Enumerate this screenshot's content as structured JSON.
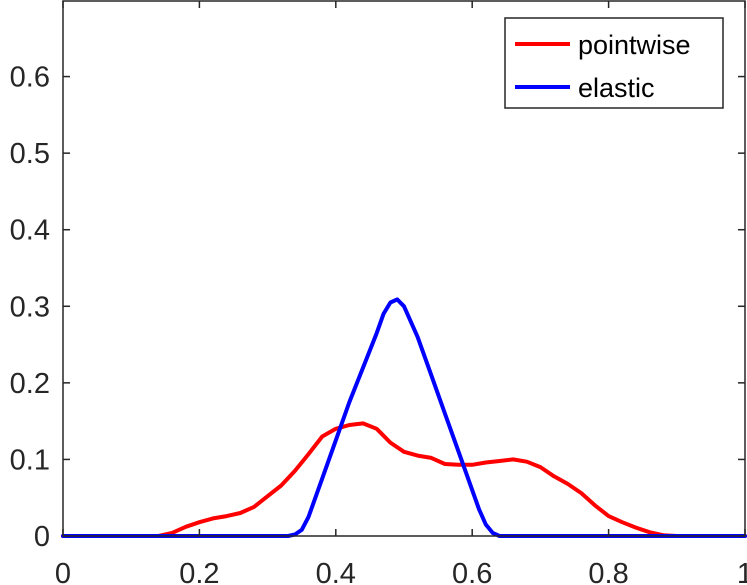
{
  "chart_data": {
    "type": "line",
    "xlim": [
      0,
      1
    ],
    "ylim": [
      0,
      0.7
    ],
    "xticks": [
      0,
      0.2,
      0.4,
      0.6,
      0.8,
      1
    ],
    "xtick_labels": [
      "0",
      "0.2",
      "0.4",
      "0.6",
      "0.8",
      "1"
    ],
    "yticks": [
      0,
      0.1,
      0.2,
      0.3,
      0.4,
      0.5,
      0.6
    ],
    "ytick_labels": [
      "0",
      "0.1",
      "0.2",
      "0.3",
      "0.4",
      "0.5",
      "0.6"
    ],
    "grid": false,
    "legend_position": "top-right",
    "series": [
      {
        "name": "pointwise",
        "color": "#ff0000",
        "x": [
          0,
          0.14,
          0.16,
          0.18,
          0.2,
          0.22,
          0.24,
          0.26,
          0.28,
          0.3,
          0.32,
          0.34,
          0.36,
          0.38,
          0.4,
          0.42,
          0.44,
          0.46,
          0.48,
          0.5,
          0.52,
          0.54,
          0.56,
          0.58,
          0.6,
          0.62,
          0.64,
          0.66,
          0.68,
          0.7,
          0.72,
          0.74,
          0.76,
          0.78,
          0.8,
          0.82,
          0.84,
          0.86,
          0.88,
          0.9,
          0.92,
          1
        ],
        "y": [
          0,
          0,
          0.004,
          0.012,
          0.018,
          0.023,
          0.026,
          0.03,
          0.038,
          0.052,
          0.066,
          0.085,
          0.107,
          0.13,
          0.14,
          0.145,
          0.147,
          0.14,
          0.122,
          0.11,
          0.105,
          0.102,
          0.094,
          0.093,
          0.093,
          0.096,
          0.098,
          0.1,
          0.097,
          0.09,
          0.078,
          0.068,
          0.056,
          0.04,
          0.026,
          0.018,
          0.011,
          0.005,
          0.001,
          0,
          0,
          0
        ]
      },
      {
        "name": "elastic",
        "color": "#0000ff",
        "x": [
          0,
          0.33,
          0.34,
          0.35,
          0.36,
          0.38,
          0.4,
          0.42,
          0.44,
          0.46,
          0.47,
          0.48,
          0.49,
          0.5,
          0.52,
          0.54,
          0.56,
          0.58,
          0.6,
          0.61,
          0.62,
          0.63,
          0.64,
          1
        ],
        "y": [
          0,
          0,
          0.002,
          0.008,
          0.025,
          0.075,
          0.125,
          0.175,
          0.22,
          0.265,
          0.29,
          0.305,
          0.309,
          0.3,
          0.26,
          0.21,
          0.16,
          0.11,
          0.06,
          0.035,
          0.015,
          0.004,
          0,
          0
        ]
      }
    ]
  }
}
